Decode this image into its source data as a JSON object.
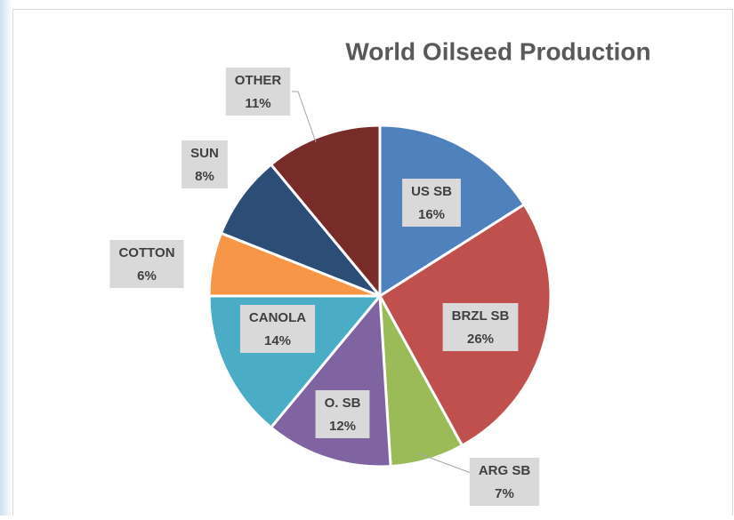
{
  "chart_data": {
    "type": "pie",
    "title": "World Oilseed Production",
    "categories": [
      "US SB",
      "BRZL SB",
      "ARG SB",
      "O. SB",
      "CANOLA",
      "COTTON",
      "SUN",
      "OTHER"
    ],
    "values": [
      16,
      26,
      7,
      12,
      14,
      6,
      8,
      11
    ],
    "value_labels": [
      "16%",
      "26%",
      "7%",
      "12%",
      "14%",
      "6%",
      "8%",
      "11%"
    ],
    "colors": [
      "#4f81bd",
      "#c0504d",
      "#9bbb59",
      "#8064a2",
      "#4bacc6",
      "#f79646",
      "#2c4d75",
      "#772c2a"
    ]
  }
}
